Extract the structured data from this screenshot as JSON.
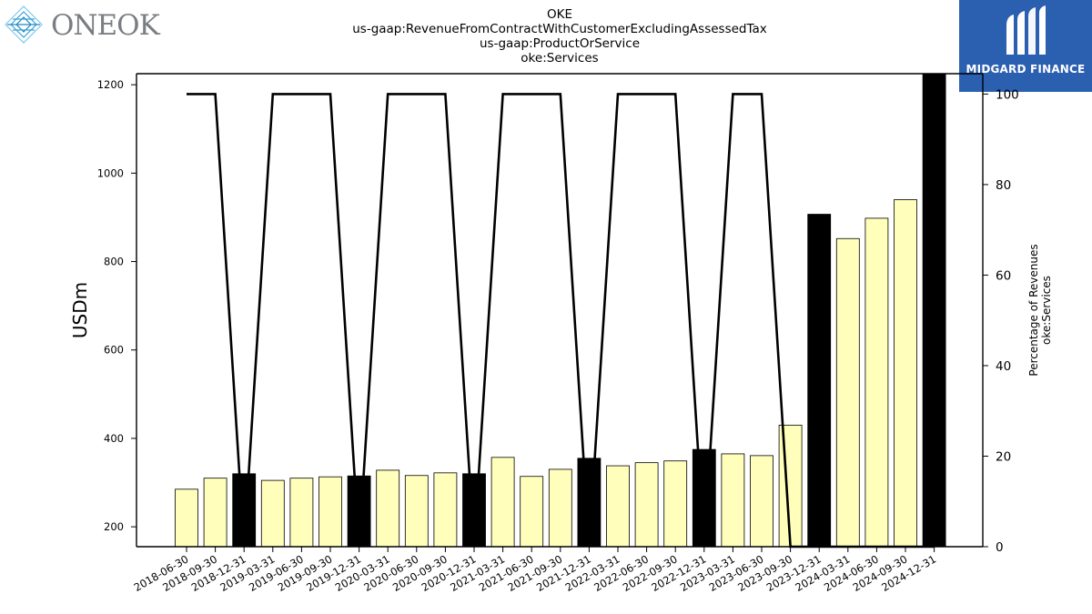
{
  "logos": {
    "left_text": "ONEOK",
    "right_text": "MIDGARD FINANCE"
  },
  "colors": {
    "bar_normal": "#ffffbb",
    "bar_highlight": "#000000",
    "line": "#000000",
    "brand_blue": "#2b5fb0"
  },
  "chart_data": {
    "type": "bar",
    "title_lines": [
      "OKE",
      "us-gaap:RevenueFromContractWithCustomerExcludingAssessedTax",
      "us-gaap:ProductOrService",
      "oke:Services"
    ],
    "ylabel": "USDm",
    "y2label_lines": [
      "Percentage of Revenues",
      "oke:Services"
    ],
    "ylim": [
      155,
      1225
    ],
    "y2lim": [
      0,
      104.5
    ],
    "yticks": [
      200,
      400,
      600,
      800,
      1000,
      1200
    ],
    "y2ticks": [
      0,
      20,
      40,
      60,
      80,
      100
    ],
    "categories": [
      "2018-06-30",
      "2018-09-30",
      "2018-12-31",
      "2019-03-31",
      "2019-06-30",
      "2019-09-30",
      "2019-12-31",
      "2020-03-31",
      "2020-06-30",
      "2020-09-30",
      "2020-12-31",
      "2021-03-31",
      "2021-06-30",
      "2021-09-30",
      "2021-12-31",
      "2022-03-31",
      "2022-06-30",
      "2022-09-30",
      "2022-12-31",
      "2023-03-31",
      "2023-06-30",
      "2023-09-30",
      "2023-12-31",
      "2024-03-31",
      "2024-06-30",
      "2024-09-30",
      "2024-12-31"
    ],
    "series": [
      {
        "type": "bar",
        "values": [
          285,
          310,
          320,
          305,
          310,
          313,
          315,
          328,
          316,
          322,
          320,
          357,
          314,
          330,
          355,
          338,
          345,
          349,
          375,
          365,
          361,
          430,
          907,
          852,
          898,
          940,
          1225
        ],
        "highlight": [
          false,
          false,
          true,
          false,
          false,
          false,
          true,
          false,
          false,
          false,
          true,
          false,
          false,
          false,
          true,
          false,
          false,
          false,
          true,
          false,
          false,
          false,
          true,
          false,
          false,
          false,
          true
        ]
      },
      {
        "type": "line",
        "axis": "right",
        "values": [
          100,
          100,
          0,
          100,
          100,
          100,
          0,
          100,
          100,
          100,
          0,
          100,
          100,
          100,
          0,
          100,
          100,
          100,
          0,
          100,
          100,
          0,
          0,
          0,
          0,
          0,
          0
        ]
      }
    ],
    "grid": false,
    "legend": "none"
  }
}
